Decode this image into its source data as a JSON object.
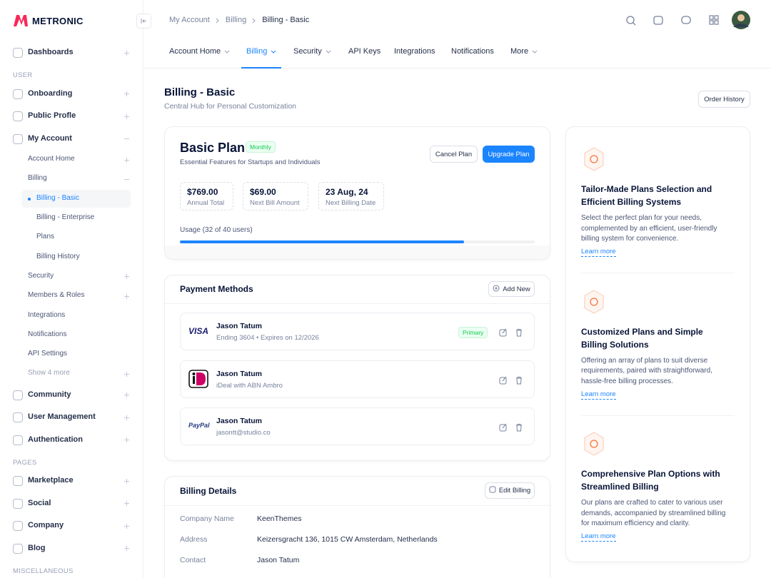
{
  "sidebar": {
    "brand": "METRONIC",
    "menu": [
      {
        "label": "Dashboards",
        "expandable": true
      },
      {
        "heading": "USER"
      },
      {
        "label": "Onboarding",
        "expandable": true
      },
      {
        "label": "Public Profle",
        "expandable": true
      },
      {
        "label": "My Account",
        "expanded": true,
        "children": [
          {
            "label": "Account Home",
            "expandable": true
          },
          {
            "label": "Billing",
            "expanded": true,
            "children": [
              {
                "label": "Billing - Basic",
                "active": true
              },
              {
                "label": "Billing - Enterprise"
              },
              {
                "label": "Plans"
              },
              {
                "label": "Billing History"
              }
            ]
          },
          {
            "label": "Security",
            "expandable": true
          },
          {
            "label": "Members & Roles",
            "expandable": true
          },
          {
            "label": "Integrations"
          },
          {
            "label": "Notifications"
          },
          {
            "label": "API Settings"
          },
          {
            "label": "Show 4 more",
            "muted": true,
            "expandable": true
          }
        ]
      },
      {
        "label": "Community",
        "expandable": true
      },
      {
        "label": "User Management",
        "expandable": true
      },
      {
        "label": "Authentication",
        "expandable": true
      },
      {
        "heading": "PAGES"
      },
      {
        "label": "Marketplace",
        "expandable": true
      },
      {
        "label": "Social",
        "expandable": true
      },
      {
        "label": "Company",
        "expandable": true
      },
      {
        "label": "Blog",
        "expandable": true
      },
      {
        "heading": "MISCELLANEOUS"
      }
    ]
  },
  "breadcrumb": [
    "My Account",
    "Billing",
    "Billing - Basic"
  ],
  "tabs": [
    {
      "label": "Account Home",
      "dropdown": true
    },
    {
      "label": "Billing",
      "dropdown": true,
      "active": true
    },
    {
      "label": "Security",
      "dropdown": true
    },
    {
      "label": "API Keys"
    },
    {
      "label": "Integrations"
    },
    {
      "label": "Notifications"
    },
    {
      "label": "More",
      "dropdown": true
    }
  ],
  "page": {
    "title": "Billing - Basic",
    "subtitle": "Central Hub for Personal Customization",
    "action": "Order History"
  },
  "plan": {
    "name": "Basic Plan",
    "badge": "Monthly",
    "description": "Essential Features for Startups and Individuals",
    "cancel": "Cancel Plan",
    "upgrade": "Upgrade Plan",
    "stats": [
      {
        "value": "$769.00",
        "label": "Annual Total"
      },
      {
        "value": "$69.00",
        "label": "Next Bill Amount"
      },
      {
        "value": "23 Aug, 24",
        "label": "Next Billing Date"
      }
    ],
    "usage": {
      "label": "Usage (32 of 40 users)",
      "used": 32,
      "total": 40
    }
  },
  "payment_methods": {
    "title": "Payment Methods",
    "action": "Add New",
    "items": [
      {
        "logo": "VISA",
        "name": "Jason Tatum",
        "detail": "Ending 3604 • Expires on 12/2026",
        "badge": "Primary"
      },
      {
        "name": "Jason Tatum",
        "detail": "iDeal with ABN Ambro"
      },
      {
        "logo": "PayPal",
        "name": "Jason Tatum",
        "detail": "jasontt@studio.co"
      }
    ]
  },
  "billing_details": {
    "title": "Billing Details",
    "action": "Edit Billing",
    "rows": [
      {
        "label": "Company Name",
        "value": "KeenThemes"
      },
      {
        "label": "Address",
        "value": "Keizersgracht 136, 1015 CW Amsterdam, Netherlands"
      },
      {
        "label": "Contact",
        "value": "Jason Tatum"
      }
    ]
  },
  "features": [
    {
      "title": "Tailor-Made Plans Selection and Efficient Billing Systems",
      "text": "Select the perfect plan for your needs, complemented by an efficient, user-friendly billing system for convenience.",
      "link": "Learn more"
    },
    {
      "title": "Customized Plans and Simple Billing Solutions",
      "text": "Offering an array of plans to suit diverse requirements, paired with straightforward, hassle-free billing processes.",
      "link": "Learn more"
    },
    {
      "title": "Comprehensive Plan Options with Streamlined Billing",
      "text": "Our plans are crafted to cater to various user demands, accompanied by streamlined billing for maximum efficiency and clarity.",
      "link": "Learn more"
    }
  ]
}
